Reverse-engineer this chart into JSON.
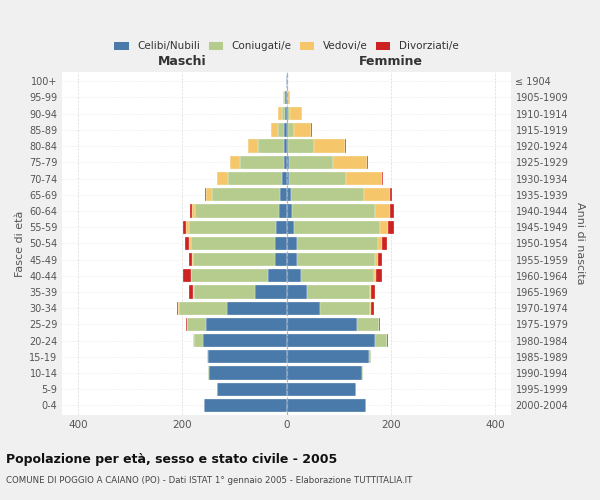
{
  "age_groups": [
    "100+",
    "95-99",
    "90-94",
    "85-89",
    "80-84",
    "75-79",
    "70-74",
    "65-69",
    "60-64",
    "55-59",
    "50-54",
    "45-49",
    "40-44",
    "35-39",
    "30-34",
    "25-29",
    "20-24",
    "15-19",
    "10-14",
    "5-9",
    "0-4"
  ],
  "birth_years": [
    "≤ 1904",
    "1905-1909",
    "1910-1914",
    "1915-1919",
    "1920-1924",
    "1925-1929",
    "1930-1934",
    "1935-1939",
    "1940-1944",
    "1945-1949",
    "1950-1954",
    "1955-1959",
    "1960-1964",
    "1965-1969",
    "1970-1974",
    "1975-1979",
    "1980-1984",
    "1985-1989",
    "1990-1994",
    "1995-1999",
    "2000-2004"
  ],
  "colors": {
    "celibi": "#4a7aaa",
    "coniugati": "#b5cc8e",
    "vedovi": "#f5c76a",
    "divorziati": "#cc2222"
  },
  "maschi": {
    "celibi": [
      1,
      2,
      3,
      5,
      5,
      5,
      8,
      12,
      15,
      20,
      22,
      22,
      35,
      60,
      115,
      155,
      160,
      150,
      148,
      133,
      158
    ],
    "coniugati": [
      0,
      2,
      5,
      12,
      50,
      85,
      105,
      130,
      160,
      168,
      162,
      158,
      148,
      118,
      92,
      35,
      18,
      3,
      2,
      0,
      0
    ],
    "vedovi": [
      0,
      2,
      8,
      12,
      18,
      18,
      20,
      12,
      7,
      4,
      3,
      2,
      1,
      1,
      1,
      1,
      1,
      0,
      0,
      0,
      0
    ],
    "divorziati": [
      0,
      0,
      0,
      0,
      0,
      0,
      0,
      2,
      3,
      6,
      8,
      5,
      14,
      8,
      3,
      1,
      0,
      0,
      0,
      0,
      0
    ]
  },
  "femmine": {
    "nubili": [
      0,
      1,
      2,
      3,
      3,
      4,
      5,
      8,
      10,
      15,
      20,
      20,
      28,
      40,
      65,
      135,
      170,
      158,
      145,
      133,
      152
    ],
    "coniugate": [
      0,
      1,
      5,
      12,
      50,
      85,
      110,
      140,
      160,
      165,
      155,
      150,
      140,
      120,
      95,
      42,
      22,
      5,
      2,
      0,
      0
    ],
    "vedove": [
      2,
      5,
      22,
      32,
      60,
      65,
      68,
      50,
      28,
      14,
      9,
      5,
      3,
      2,
      2,
      1,
      1,
      0,
      0,
      0,
      0
    ],
    "divorziate": [
      0,
      0,
      0,
      1,
      1,
      2,
      3,
      5,
      8,
      12,
      8,
      8,
      12,
      8,
      5,
      2,
      1,
      0,
      0,
      0,
      0
    ]
  },
  "xlim": 430,
  "title": "Popolazione per età, sesso e stato civile - 2005",
  "subtitle": "COMUNE DI POGGIO A CAIANO (PO) - Dati ISTAT 1° gennaio 2005 - Elaborazione TUTTITALIA.IT",
  "xlabel_maschi": "Maschi",
  "xlabel_femmine": "Femmine",
  "ylabel_left": "Fasce di età",
  "ylabel_right": "Anni di nascita",
  "legend_labels": [
    "Celibi/Nubili",
    "Coniugati/e",
    "Vedovi/e",
    "Divorziati/e"
  ],
  "bg_color": "#f0f0f0",
  "plot_bg": "#ffffff",
  "grid_color": "#cccccc"
}
